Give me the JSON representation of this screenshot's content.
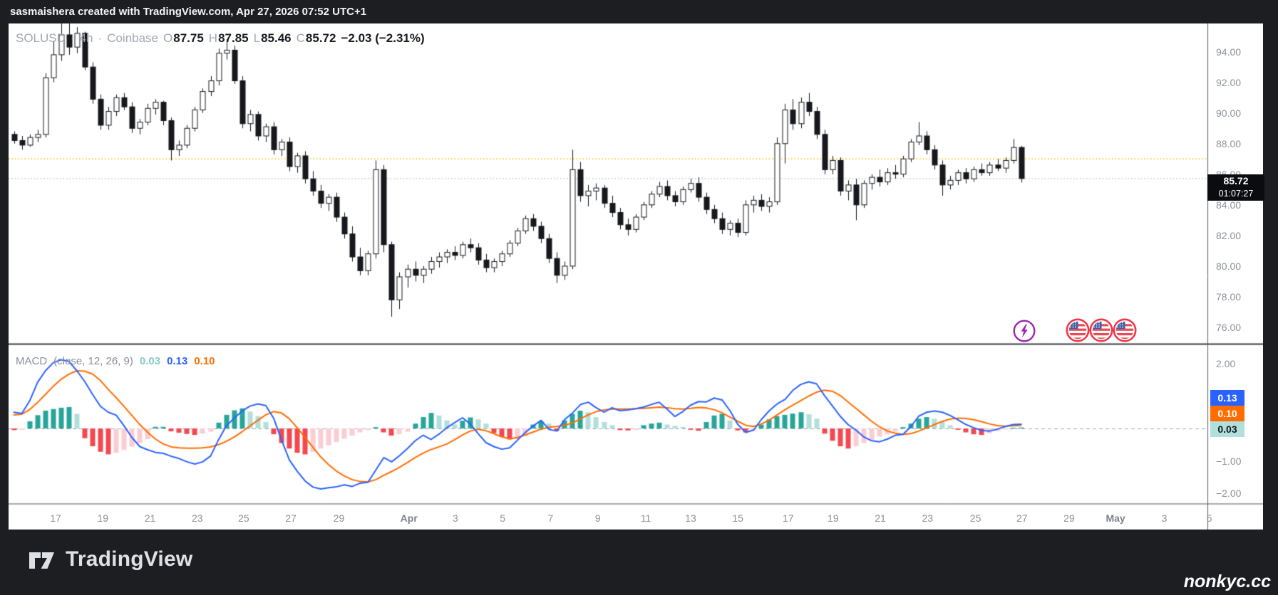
{
  "top_bar": {
    "attribution": "sasmaishera created with TradingView.com, Apr 27, 2026 07:52 UTC+1"
  },
  "legend": {
    "symbol": "SOLUSD",
    "dot1": "·",
    "interval": "4h",
    "dot2": "·",
    "exchange": "Coinbase",
    "o_label": "O",
    "o": "87.75",
    "h_label": "H",
    "h": "87.85",
    "l_label": "L",
    "l": "85.46",
    "c_label": "C",
    "c": "85.72",
    "change": "−2.03 (−2.31%)"
  },
  "price_scale": {
    "ticks": [
      {
        "label": "94.00",
        "v": 94
      },
      {
        "label": "92.00",
        "v": 92
      },
      {
        "label": "90.00",
        "v": 90
      },
      {
        "label": "88.00",
        "v": 88
      },
      {
        "label": "86.00",
        "v": 86
      },
      {
        "label": "84.00",
        "v": 84
      },
      {
        "label": "82.00",
        "v": 82
      },
      {
        "label": "80.00",
        "v": 80
      },
      {
        "label": "78.00",
        "v": 78
      },
      {
        "label": "76.00",
        "v": 76
      }
    ],
    "last_price": "85.72",
    "countdown": "01:07:27",
    "alert_line_price": 87.0,
    "current_price": 85.72
  },
  "macd_panel": {
    "title": "MACD",
    "params": "(close, 12, 26, 9)",
    "hist_value": "0.03",
    "macd_value": "0.13",
    "signal_value": "0.10",
    "ticks": [
      {
        "label": "2.00",
        "v": 2
      },
      {
        "label": "1.00",
        "v": 1
      },
      {
        "label": "0.00",
        "v": 0
      },
      {
        "label": "−1.00",
        "v": -1
      },
      {
        "label": "−2.00",
        "v": -2
      }
    ]
  },
  "time_scale": {
    "labels": [
      {
        "t": "17",
        "i": 5.3
      },
      {
        "t": "19",
        "i": 11.3
      },
      {
        "t": "21",
        "i": 17.3
      },
      {
        "t": "23",
        "i": 23.3
      },
      {
        "t": "25",
        "i": 29.2
      },
      {
        "t": "27",
        "i": 35.2
      },
      {
        "t": "29",
        "i": 41.3
      },
      {
        "t": "Apr",
        "i": 50.2,
        "month": true
      },
      {
        "t": "3",
        "i": 56.1
      },
      {
        "t": "5",
        "i": 62.1
      },
      {
        "t": "7",
        "i": 68.2
      },
      {
        "t": "9",
        "i": 74.2
      },
      {
        "t": "11",
        "i": 80.3
      },
      {
        "t": "13",
        "i": 86.0
      },
      {
        "t": "15",
        "i": 92.0
      },
      {
        "t": "17",
        "i": 98.4
      },
      {
        "t": "19",
        "i": 104.1
      },
      {
        "t": "21",
        "i": 110.1
      },
      {
        "t": "23",
        "i": 116.1
      },
      {
        "t": "25",
        "i": 122.2
      },
      {
        "t": "27",
        "i": 128.1
      },
      {
        "t": "29",
        "i": 134.1
      },
      {
        "t": "May",
        "i": 140.0,
        "month": true
      },
      {
        "t": "3",
        "i": 146.2
      },
      {
        "t": "5",
        "i": 151.9
      }
    ]
  },
  "icons": {
    "alert": "lightning-icon",
    "event_flags_count": 3,
    "event_flag": "us-flag-icon"
  },
  "footer": {
    "logo_text": "TradingView",
    "watermark": "nonkyc.cc"
  },
  "colors": {
    "up_body": "#ffffff",
    "down_body": "#16181d",
    "candle_border": "#16181d",
    "macd_line": "#2962ff",
    "signal_line": "#ff6d00",
    "hist_up": "#26a69a",
    "hist_up_fade": "#b2dfdb",
    "hist_down": "#f3484f",
    "hist_down_fade": "#fbcdd2",
    "alert_line": "#f3c000",
    "price_dotted": "#b8bcc4",
    "zero_dash": "#a3a7b0",
    "axis_line": "#565a64",
    "panel_sep": "#383c44",
    "label_blue_bg": "#2962ff",
    "label_orange_bg": "#ff6d00",
    "label_teal_bg": "#b2dfdb"
  },
  "chart_data": {
    "type": "candlestick+macd",
    "symbol": "SOLUSD",
    "interval": "4h",
    "exchange": "Coinbase",
    "price_axis_range": [
      74.9,
      95.9
    ],
    "macd_axis_range": [
      -2.4,
      2.6
    ],
    "candles": [
      [
        88.6,
        88.8,
        88.0,
        88.2
      ],
      [
        88.2,
        88.5,
        87.6,
        87.9
      ],
      [
        87.9,
        88.6,
        87.8,
        88.4
      ],
      [
        88.4,
        88.9,
        88.1,
        88.6
      ],
      [
        88.6,
        92.6,
        88.4,
        92.3
      ],
      [
        92.3,
        94.7,
        92.0,
        93.8
      ],
      [
        93.8,
        95.9,
        93.4,
        95.1
      ],
      [
        95.1,
        95.9,
        93.8,
        94.3
      ],
      [
        94.3,
        95.6,
        93.9,
        95.2
      ],
      [
        95.2,
        95.3,
        92.8,
        93.0
      ],
      [
        93.0,
        93.3,
        90.6,
        90.9
      ],
      [
        90.9,
        91.2,
        88.9,
        89.2
      ],
      [
        89.2,
        90.4,
        88.9,
        90.1
      ],
      [
        90.1,
        91.2,
        89.8,
        91.0
      ],
      [
        91.0,
        91.3,
        90.2,
        90.4
      ],
      [
        90.4,
        90.7,
        88.7,
        89.0
      ],
      [
        89.0,
        89.6,
        88.6,
        89.4
      ],
      [
        89.4,
        90.6,
        89.2,
        90.3
      ],
      [
        90.3,
        90.9,
        89.9,
        90.7
      ],
      [
        90.7,
        90.8,
        89.2,
        89.5
      ],
      [
        89.5,
        89.7,
        86.9,
        87.6
      ],
      [
        87.6,
        88.2,
        87.2,
        87.9
      ],
      [
        87.9,
        89.2,
        87.7,
        89.0
      ],
      [
        89.0,
        90.4,
        88.8,
        90.2
      ],
      [
        90.2,
        91.6,
        90.0,
        91.4
      ],
      [
        91.4,
        92.4,
        91.1,
        92.1
      ],
      [
        92.1,
        94.2,
        91.8,
        93.9
      ],
      [
        93.9,
        94.8,
        93.5,
        94.1
      ],
      [
        94.1,
        94.4,
        91.9,
        92.1
      ],
      [
        92.1,
        92.4,
        89.0,
        89.3
      ],
      [
        89.3,
        90.2,
        88.8,
        89.9
      ],
      [
        89.9,
        90.1,
        88.2,
        88.5
      ],
      [
        88.5,
        89.3,
        88.1,
        89.1
      ],
      [
        89.1,
        89.4,
        87.3,
        87.6
      ],
      [
        87.6,
        88.3,
        87.2,
        88.1
      ],
      [
        88.1,
        88.4,
        86.2,
        86.5
      ],
      [
        86.5,
        87.4,
        86.1,
        87.2
      ],
      [
        87.2,
        87.5,
        85.4,
        85.7
      ],
      [
        85.7,
        86.2,
        84.6,
        84.9
      ],
      [
        84.9,
        85.3,
        83.8,
        84.1
      ],
      [
        84.1,
        84.7,
        83.6,
        84.5
      ],
      [
        84.5,
        84.8,
        82.9,
        83.2
      ],
      [
        83.2,
        83.5,
        81.8,
        82.1
      ],
      [
        82.1,
        82.6,
        80.3,
        80.6
      ],
      [
        80.6,
        81.2,
        79.4,
        79.7
      ],
      [
        79.7,
        81.0,
        79.4,
        80.8
      ],
      [
        80.8,
        86.9,
        80.5,
        86.3
      ],
      [
        86.3,
        86.6,
        80.9,
        81.4
      ],
      [
        81.4,
        81.6,
        76.7,
        77.8
      ],
      [
        77.8,
        79.6,
        77.2,
        79.3
      ],
      [
        79.3,
        80.1,
        78.6,
        79.8
      ],
      [
        79.8,
        80.3,
        79.0,
        79.4
      ],
      [
        79.4,
        80.0,
        78.9,
        79.8
      ],
      [
        79.8,
        80.6,
        79.5,
        80.3
      ],
      [
        80.3,
        80.9,
        79.9,
        80.6
      ],
      [
        80.6,
        81.1,
        80.2,
        80.9
      ],
      [
        80.9,
        81.3,
        80.4,
        80.7
      ],
      [
        80.7,
        81.6,
        80.5,
        81.4
      ],
      [
        81.4,
        81.8,
        80.9,
        81.2
      ],
      [
        81.2,
        81.5,
        80.1,
        80.4
      ],
      [
        80.4,
        80.8,
        79.6,
        79.9
      ],
      [
        79.9,
        80.5,
        79.6,
        80.3
      ],
      [
        80.3,
        81.0,
        80.0,
        80.8
      ],
      [
        80.8,
        81.7,
        80.6,
        81.5
      ],
      [
        81.5,
        82.5,
        81.3,
        82.3
      ],
      [
        82.3,
        83.3,
        82.1,
        83.1
      ],
      [
        83.1,
        83.4,
        82.3,
        82.6
      ],
      [
        82.6,
        82.9,
        81.5,
        81.8
      ],
      [
        81.8,
        82.1,
        80.2,
        80.5
      ],
      [
        80.5,
        80.9,
        78.9,
        79.4
      ],
      [
        79.4,
        80.3,
        79.1,
        80.0
      ],
      [
        80.0,
        87.6,
        79.8,
        86.3
      ],
      [
        86.3,
        86.8,
        84.2,
        84.6
      ],
      [
        84.6,
        85.3,
        83.9,
        84.9
      ],
      [
        84.9,
        85.4,
        84.3,
        85.1
      ],
      [
        85.1,
        85.3,
        83.8,
        84.1
      ],
      [
        84.1,
        84.6,
        83.2,
        83.5
      ],
      [
        83.5,
        83.8,
        82.4,
        82.7
      ],
      [
        82.7,
        83.1,
        82.0,
        82.4
      ],
      [
        82.4,
        83.4,
        82.2,
        83.2
      ],
      [
        83.2,
        84.2,
        83.0,
        84.0
      ],
      [
        84.0,
        84.9,
        83.8,
        84.7
      ],
      [
        84.7,
        85.5,
        84.5,
        85.2
      ],
      [
        85.2,
        85.6,
        84.3,
        84.6
      ],
      [
        84.6,
        84.9,
        83.9,
        84.2
      ],
      [
        84.2,
        85.2,
        84.0,
        85.0
      ],
      [
        85.0,
        85.7,
        84.8,
        85.4
      ],
      [
        85.4,
        85.8,
        84.2,
        84.5
      ],
      [
        84.5,
        84.8,
        83.4,
        83.7
      ],
      [
        83.7,
        84.0,
        82.8,
        83.1
      ],
      [
        83.1,
        83.5,
        82.1,
        82.4
      ],
      [
        82.4,
        83.0,
        82.0,
        82.8
      ],
      [
        82.8,
        83.1,
        81.9,
        82.2
      ],
      [
        82.2,
        84.3,
        82.0,
        84.0
      ],
      [
        84.0,
        84.6,
        83.5,
        84.3
      ],
      [
        84.3,
        84.7,
        83.6,
        83.9
      ],
      [
        83.9,
        84.5,
        83.5,
        84.2
      ],
      [
        84.2,
        88.4,
        84.0,
        88.0
      ],
      [
        88.0,
        90.6,
        86.7,
        90.2
      ],
      [
        90.2,
        90.9,
        88.9,
        89.3
      ],
      [
        89.3,
        91.0,
        89.0,
        90.7
      ],
      [
        90.7,
        91.3,
        89.8,
        90.1
      ],
      [
        90.1,
        90.4,
        88.3,
        88.6
      ],
      [
        88.6,
        88.9,
        86.0,
        86.3
      ],
      [
        86.3,
        87.2,
        86.0,
        86.9
      ],
      [
        86.9,
        87.1,
        84.6,
        84.9
      ],
      [
        84.9,
        85.6,
        84.3,
        85.3
      ],
      [
        85.3,
        85.7,
        83.0,
        84.0
      ],
      [
        84.0,
        85.6,
        83.8,
        85.4
      ],
      [
        85.4,
        86.0,
        85.0,
        85.8
      ],
      [
        85.8,
        86.3,
        85.2,
        85.5
      ],
      [
        85.5,
        86.4,
        85.3,
        86.1
      ],
      [
        86.1,
        86.6,
        85.7,
        86.0
      ],
      [
        86.0,
        87.2,
        85.8,
        87.0
      ],
      [
        87.0,
        88.3,
        86.8,
        88.1
      ],
      [
        88.1,
        89.4,
        87.9,
        88.5
      ],
      [
        88.5,
        88.8,
        87.3,
        87.6
      ],
      [
        87.6,
        87.9,
        86.3,
        86.6
      ],
      [
        86.6,
        86.9,
        84.6,
        85.3
      ],
      [
        85.3,
        85.9,
        85.0,
        85.6
      ],
      [
        85.6,
        86.3,
        85.3,
        86.1
      ],
      [
        86.1,
        86.4,
        85.4,
        85.7
      ],
      [
        85.7,
        86.5,
        85.5,
        86.3
      ],
      [
        86.3,
        86.7,
        85.9,
        86.1
      ],
      [
        86.1,
        86.8,
        85.9,
        86.6
      ],
      [
        86.6,
        87.0,
        86.2,
        86.4
      ],
      [
        86.4,
        87.1,
        86.1,
        86.9
      ],
      [
        86.9,
        88.3,
        86.7,
        87.75
      ],
      [
        87.75,
        87.85,
        85.46,
        85.72
      ]
    ],
    "macd": [
      0.5,
      0.46,
      0.85,
      1.42,
      1.78,
      2.03,
      2.12,
      2.07,
      1.78,
      1.45,
      1.05,
      0.68,
      0.5,
      0.41,
      0.08,
      -0.28,
      -0.56,
      -0.66,
      -0.74,
      -0.77,
      -0.86,
      -0.93,
      -1.03,
      -1.1,
      -1.03,
      -0.85,
      -0.35,
      0.08,
      0.32,
      0.54,
      0.69,
      0.76,
      0.71,
      0.32,
      -0.35,
      -0.97,
      -1.32,
      -1.62,
      -1.81,
      -1.87,
      -1.83,
      -1.8,
      -1.74,
      -1.79,
      -1.69,
      -1.66,
      -1.28,
      -0.9,
      -1.03,
      -0.84,
      -0.62,
      -0.38,
      -0.21,
      -0.34,
      -0.18,
      0.02,
      0.18,
      0.33,
      0.14,
      -0.16,
      -0.44,
      -0.56,
      -0.64,
      -0.6,
      -0.36,
      -0.12,
      0.08,
      0.25,
      -0.03,
      -0.08,
      0.28,
      0.48,
      0.74,
      0.81,
      0.64,
      0.5,
      0.64,
      0.55,
      0.57,
      0.61,
      0.66,
      0.74,
      0.81,
      0.6,
      0.37,
      0.52,
      0.72,
      0.83,
      0.82,
      0.94,
      0.88,
      0.55,
      0.12,
      -0.12,
      -0.05,
      0.28,
      0.55,
      0.76,
      0.9,
      1.18,
      1.36,
      1.44,
      1.38,
      1.02,
      0.7,
      0.38,
      0.12,
      -0.05,
      -0.26,
      -0.38,
      -0.41,
      -0.33,
      -0.21,
      -0.18,
      0.06,
      0.38,
      0.5,
      0.54,
      0.5,
      0.4,
      0.26,
      0.12,
      0.02,
      -0.06,
      -0.08,
      -0.02,
      0.06,
      0.12,
      0.13
    ],
    "signal": [
      0.42,
      0.44,
      0.58,
      0.8,
      1.05,
      1.3,
      1.52,
      1.68,
      1.78,
      1.77,
      1.68,
      1.48,
      1.2,
      0.95,
      0.68,
      0.4,
      0.12,
      -0.12,
      -0.33,
      -0.48,
      -0.57,
      -0.6,
      -0.61,
      -0.61,
      -0.6,
      -0.57,
      -0.5,
      -0.4,
      -0.26,
      -0.1,
      0.08,
      0.25,
      0.42,
      0.52,
      0.48,
      0.3,
      0.02,
      -0.28,
      -0.58,
      -0.88,
      -1.12,
      -1.32,
      -1.47,
      -1.58,
      -1.64,
      -1.65,
      -1.58,
      -1.45,
      -1.33,
      -1.2,
      -1.05,
      -0.9,
      -0.76,
      -0.65,
      -0.57,
      -0.48,
      -0.35,
      -0.2,
      -0.08,
      -0.02,
      -0.07,
      -0.16,
      -0.26,
      -0.32,
      -0.28,
      -0.2,
      -0.11,
      -0.02,
      0.04,
      0.06,
      0.1,
      0.17,
      0.3,
      0.42,
      0.52,
      0.57,
      0.6,
      0.6,
      0.6,
      0.61,
      0.62,
      0.64,
      0.66,
      0.64,
      0.61,
      0.6,
      0.62,
      0.65,
      0.63,
      0.58,
      0.48,
      0.35,
      0.22,
      0.1,
      0.06,
      0.14,
      0.26,
      0.42,
      0.58,
      0.72,
      0.86,
      1.0,
      1.12,
      1.18,
      1.15,
      1.02,
      0.82,
      0.62,
      0.42,
      0.22,
      0.05,
      -0.08,
      -0.15,
      -0.18,
      -0.16,
      -0.08,
      0.02,
      0.12,
      0.22,
      0.29,
      0.32,
      0.31,
      0.27,
      0.21,
      0.14,
      0.09,
      0.07,
      0.08,
      0.1
    ],
    "histogram": [
      -0.05,
      -0.04,
      0.22,
      0.41,
      0.55,
      0.6,
      0.64,
      0.66,
      0.45,
      -0.3,
      -0.55,
      -0.72,
      -0.8,
      -0.75,
      -0.66,
      -0.56,
      -0.45,
      -0.33,
      0.05,
      0.05,
      -0.09,
      -0.13,
      -0.17,
      -0.2,
      -0.16,
      -0.1,
      0.18,
      0.42,
      0.56,
      0.62,
      0.52,
      0.38,
      0.2,
      -0.18,
      -0.45,
      -0.62,
      -0.75,
      -0.8,
      -0.72,
      -0.62,
      -0.52,
      -0.42,
      -0.32,
      -0.22,
      -0.12,
      -0.05,
      0.04,
      -0.12,
      -0.22,
      -0.18,
      -0.1,
      0.15,
      0.35,
      0.48,
      0.4,
      0.25,
      0.12,
      0.24,
      0.34,
      0.28,
      0.15,
      -0.14,
      -0.26,
      -0.34,
      -0.33,
      -0.24,
      0.12,
      0.22,
      0.15,
      -0.08,
      0.25,
      0.45,
      0.55,
      0.5,
      0.35,
      0.2,
      0.1,
      -0.05,
      -0.06,
      -0.04,
      0.1,
      0.15,
      0.18,
      0.12,
      0.08,
      0.05,
      -0.04,
      -0.07,
      0.2,
      0.4,
      0.45,
      0.25,
      -0.06,
      -0.12,
      -0.08,
      0.12,
      0.28,
      0.38,
      0.42,
      0.46,
      0.5,
      0.44,
      0.3,
      -0.16,
      -0.38,
      -0.55,
      -0.62,
      -0.55,
      -0.45,
      -0.35,
      -0.25,
      -0.18,
      -0.1,
      0.04,
      0.15,
      0.3,
      0.35,
      0.3,
      0.2,
      0.1,
      -0.04,
      -0.12,
      -0.18,
      -0.2,
      -0.15,
      -0.08,
      -0.03,
      0.02,
      0.03
    ]
  }
}
